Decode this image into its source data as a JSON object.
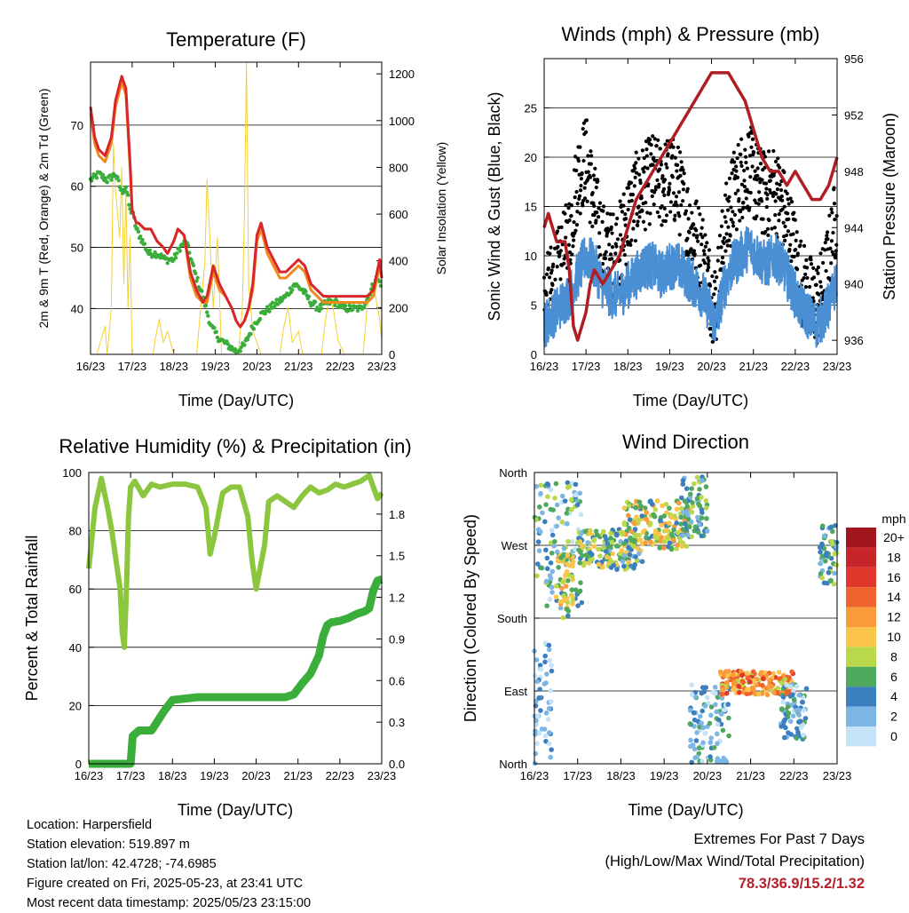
{
  "x_axis": {
    "ticks": [
      "16/23",
      "17/23",
      "18/23",
      "19/23",
      "20/23",
      "21/23",
      "22/23",
      "23/23"
    ],
    "label": "Time (Day/UTC)"
  },
  "chart_data": [
    {
      "type": "line",
      "title": "Temperature (F)",
      "ylabel": "2m & 9m T (Red, Orange) & 2m Td (Green)",
      "y2label": "Solar Insolation (Yellow)",
      "ylim": [
        32.5,
        80.3
      ],
      "yticks": [
        40,
        50,
        60,
        70
      ],
      "y2lim": [
        0,
        1250
      ],
      "y2ticks": [
        0,
        200,
        400,
        600,
        800,
        1000,
        1200
      ],
      "grid": true,
      "series": [
        {
          "color": "#d9262b",
          "axis": "left",
          "x": [
            0,
            0.1,
            0.2,
            0.35,
            0.5,
            0.6,
            0.75,
            0.85,
            0.95,
            1.0,
            1.05,
            1.1,
            1.15,
            1.3,
            1.45,
            1.6,
            1.75,
            1.85,
            2.0,
            2.1,
            2.25,
            2.4,
            2.55,
            2.7,
            2.8,
            2.95,
            3.1,
            3.25,
            3.4,
            3.5,
            3.6,
            3.7,
            3.8,
            3.9,
            4.0,
            4.1,
            4.25,
            4.4,
            4.55,
            4.7,
            4.85,
            5.0,
            5.15,
            5.3,
            5.45,
            5.6,
            5.75,
            5.9,
            6.05,
            6.2,
            6.35,
            6.5,
            6.65,
            6.8,
            6.95,
            7.0
          ],
          "y": [
            73,
            68,
            66,
            65,
            68,
            74,
            78,
            76,
            64,
            56,
            55,
            54,
            54,
            53,
            53,
            51,
            50,
            49,
            51,
            53,
            52,
            46,
            43,
            41,
            42,
            47,
            44,
            42,
            40,
            38,
            37,
            38,
            40,
            44,
            52,
            54,
            50,
            48,
            46,
            46,
            47,
            48,
            47,
            44,
            43,
            42,
            42,
            42,
            42,
            42,
            42,
            42,
            42,
            43,
            48,
            45
          ]
        },
        {
          "color": "#f08a1e",
          "axis": "left",
          "x": [
            0,
            0.1,
            0.2,
            0.35,
            0.5,
            0.6,
            0.75,
            0.85,
            0.95,
            1.0,
            1.05,
            1.1,
            1.15,
            1.3,
            1.45,
            1.6,
            1.75,
            1.85,
            2.0,
            2.1,
            2.25,
            2.4,
            2.55,
            2.7,
            2.8,
            2.95,
            3.1,
            3.25,
            3.4,
            3.5,
            3.6,
            3.7,
            3.8,
            3.9,
            4.0,
            4.1,
            4.25,
            4.4,
            4.55,
            4.7,
            4.85,
            5.0,
            5.15,
            5.3,
            5.45,
            5.6,
            5.75,
            5.9,
            6.05,
            6.2,
            6.35,
            6.5,
            6.65,
            6.8,
            6.95,
            7.0
          ],
          "y": [
            72,
            67,
            65,
            64,
            67,
            73,
            77,
            75,
            63,
            56,
            55,
            54,
            54,
            53,
            53,
            51,
            50,
            49,
            51,
            53,
            52,
            45,
            42,
            41,
            41,
            46,
            43,
            42,
            40,
            38,
            37,
            38,
            40,
            43,
            51,
            53,
            49,
            47,
            45,
            45,
            46,
            47,
            46,
            43,
            42,
            41,
            41,
            41,
            41,
            41,
            41,
            41,
            41,
            42,
            47,
            45
          ]
        },
        {
          "color": "#3aad3a",
          "axis": "left",
          "x": [
            0,
            0.2,
            0.4,
            0.6,
            0.75,
            0.85,
            0.95,
            1.0,
            1.1,
            1.25,
            1.4,
            1.6,
            1.8,
            2.0,
            2.15,
            2.3,
            2.5,
            2.7,
            2.9,
            3.1,
            3.3,
            3.5,
            3.7,
            3.9,
            4.1,
            4.3,
            4.5,
            4.7,
            4.9,
            5.1,
            5.3,
            5.5,
            5.7,
            5.9,
            6.1,
            6.3,
            6.5,
            6.7,
            6.85,
            7.0
          ],
          "y": [
            61,
            62,
            61,
            62,
            59,
            60,
            56,
            56,
            53,
            51,
            49,
            49,
            48,
            48,
            50,
            51,
            46,
            42,
            37,
            35,
            34,
            33,
            34,
            37,
            39,
            40,
            41,
            42,
            44,
            43,
            41,
            40,
            41,
            41,
            40,
            40,
            40,
            42,
            45,
            44
          ]
        },
        {
          "color": "#f5d031",
          "axis": "right",
          "x": [
            0,
            0.15,
            0.25,
            0.35,
            0.4,
            0.5,
            0.55,
            0.6,
            0.7,
            0.75,
            0.8,
            0.85,
            0.9,
            0.95,
            1.0,
            1.1,
            1.5,
            1.55,
            1.65,
            1.75,
            1.85,
            2.0,
            2.55,
            2.65,
            2.75,
            2.8,
            2.95,
            3.05,
            3.15,
            3.35,
            3.55,
            3.65,
            3.7,
            3.75,
            3.8,
            3.9,
            4.1,
            4.55,
            4.65,
            4.75,
            4.85,
            5.0,
            5.1,
            5.55,
            5.65,
            5.75,
            5.85,
            5.95,
            6.1,
            6.55,
            6.65,
            6.75,
            6.85,
            6.95,
            7.0
          ],
          "y": [
            0,
            0,
            60,
            120,
            0,
            200,
            900,
            700,
            500,
            800,
            300,
            700,
            200,
            500,
            0,
            0,
            0,
            60,
            150,
            50,
            100,
            0,
            0,
            200,
            400,
            750,
            200,
            500,
            0,
            0,
            0,
            200,
            600,
            1250,
            300,
            100,
            0,
            0,
            120,
            200,
            50,
            100,
            0,
            0,
            150,
            250,
            180,
            60,
            0,
            0,
            200,
            300,
            250,
            150,
            60
          ]
        }
      ]
    },
    {
      "type": "line",
      "title": "Winds (mph) & Pressure (mb)",
      "ylabel": "Sonic Wind & Gust (Blue, Black)",
      "y2label": "Station Pressure (Maroon)",
      "ylim": [
        0,
        30
      ],
      "yticks": [
        0,
        5,
        10,
        15,
        20,
        25
      ],
      "y2lim": [
        935,
        956
      ],
      "y2ticks": [
        936,
        940,
        944,
        948,
        952,
        956
      ],
      "grid": true,
      "series": [
        {
          "color": "#4a8fd4",
          "axis": "left",
          "kind": "wind",
          "x": [
            0,
            0.2,
            0.4,
            0.6,
            0.8,
            1.0,
            1.2,
            1.4,
            1.6,
            1.8,
            2.0,
            2.2,
            2.4,
            2.6,
            2.8,
            3.0,
            3.2,
            3.4,
            3.6,
            3.8,
            4.0,
            4.1,
            4.3,
            4.5,
            4.7,
            4.9,
            5.1,
            5.3,
            5.5,
            5.7,
            5.9,
            6.1,
            6.3,
            6.5,
            6.7,
            6.9,
            7.0
          ],
          "y": [
            3,
            4,
            5,
            6,
            8,
            10,
            9,
            7,
            6,
            6,
            7,
            8,
            9,
            9,
            8,
            9,
            9,
            8,
            7,
            6,
            4,
            3,
            7,
            9,
            10,
            11,
            10,
            9,
            10,
            9,
            7,
            5,
            4,
            3,
            4,
            6,
            8
          ]
        },
        {
          "color": "#000000",
          "axis": "left",
          "kind": "gust",
          "x": [
            0,
            0.2,
            0.4,
            0.6,
            0.8,
            1.0,
            1.2,
            1.4,
            1.6,
            1.8,
            2.0,
            2.2,
            2.4,
            2.6,
            2.8,
            3.0,
            3.2,
            3.4,
            3.6,
            3.8,
            4.0,
            4.1,
            4.3,
            4.5,
            4.7,
            4.9,
            5.1,
            5.3,
            5.5,
            5.7,
            5.9,
            6.1,
            6.3,
            6.5,
            6.7,
            6.9,
            7.0
          ],
          "y": [
            5,
            7,
            9,
            12,
            18,
            20,
            15,
            11,
            10,
            11,
            14,
            16,
            17,
            18,
            17,
            18,
            17,
            14,
            12,
            10,
            6,
            5,
            12,
            16,
            18,
            19,
            17,
            16,
            17,
            15,
            12,
            8,
            6,
            5,
            7,
            12,
            15
          ]
        },
        {
          "color": "#b01e23",
          "axis": "right",
          "kind": "pressure",
          "x": [
            0,
            0.1,
            0.2,
            0.3,
            0.5,
            0.6,
            0.7,
            0.8,
            0.9,
            1.0,
            1.1,
            1.2,
            1.4,
            1.6,
            1.8,
            2.0,
            2.2,
            2.4,
            2.6,
            2.8,
            3.0,
            3.2,
            3.4,
            3.6,
            3.8,
            4.0,
            4.2,
            4.4,
            4.6,
            4.8,
            5.0,
            5.2,
            5.4,
            5.6,
            5.8,
            6.0,
            6.2,
            6.4,
            6.6,
            6.8,
            7.0
          ],
          "y": [
            944,
            945,
            944,
            943,
            943,
            941,
            937,
            936,
            937,
            938,
            940,
            941,
            940,
            941,
            942,
            944,
            946,
            947,
            948,
            949,
            950,
            951,
            952,
            953,
            954,
            955,
            955,
            955,
            954,
            953,
            951,
            949,
            948,
            948,
            947,
            948,
            947,
            946,
            946,
            947,
            949
          ]
        }
      ]
    },
    {
      "type": "line",
      "title": "Relative Humidity (%) & Precipitation (in)",
      "ylabel": "Percent & Total Rainfall",
      "ylim": [
        0,
        100
      ],
      "yticks": [
        0,
        20,
        40,
        60,
        80,
        100
      ],
      "y2lim": [
        0,
        2.1
      ],
      "y2ticks": [
        "0.0",
        "0.3",
        "0.6",
        "0.9",
        "1.2",
        "1.5",
        "1.8"
      ],
      "grid": true,
      "series": [
        {
          "color": "#8cc63f",
          "axis": "left",
          "x": [
            0,
            0.15,
            0.3,
            0.45,
            0.55,
            0.65,
            0.75,
            0.8,
            0.85,
            0.9,
            0.95,
            1.0,
            1.1,
            1.3,
            1.5,
            1.7,
            2.0,
            2.3,
            2.6,
            2.8,
            2.9,
            3.0,
            3.2,
            3.4,
            3.6,
            3.8,
            3.9,
            4.0,
            4.2,
            4.3,
            4.5,
            4.7,
            4.9,
            5.1,
            5.3,
            5.5,
            5.7,
            5.9,
            6.1,
            6.3,
            6.5,
            6.7,
            6.9,
            7.0
          ],
          "y": [
            67,
            88,
            98,
            88,
            80,
            70,
            60,
            45,
            40,
            60,
            85,
            95,
            97,
            92,
            96,
            95,
            96,
            96,
            95,
            88,
            72,
            78,
            93,
            95,
            95,
            85,
            70,
            60,
            75,
            90,
            92,
            90,
            88,
            92,
            95,
            93,
            94,
            96,
            95,
            96,
            97,
            99,
            91,
            93
          ]
        },
        {
          "color": "#3aad3a",
          "axis": "right",
          "x": [
            0,
            0.5,
            1.0,
            1.05,
            1.2,
            1.5,
            1.8,
            2.0,
            2.3,
            2.6,
            2.9,
            3.2,
            3.5,
            3.8,
            4.1,
            4.4,
            4.7,
            4.9,
            5.1,
            5.3,
            5.5,
            5.6,
            5.7,
            5.8,
            6.0,
            6.2,
            6.4,
            6.6,
            6.7,
            6.8,
            6.9,
            7.0
          ],
          "y": [
            0,
            0,
            0,
            0.2,
            0.24,
            0.24,
            0.38,
            0.46,
            0.47,
            0.48,
            0.48,
            0.48,
            0.48,
            0.48,
            0.48,
            0.48,
            0.48,
            0.5,
            0.58,
            0.65,
            0.78,
            0.92,
            1.0,
            1.02,
            1.03,
            1.05,
            1.08,
            1.1,
            1.12,
            1.25,
            1.32,
            1.33
          ]
        }
      ]
    },
    {
      "type": "scatter",
      "title": "Wind Direction",
      "ylabel": "Direction (Colored By Speed)",
      "yticks": [
        "North",
        "East",
        "South",
        "West",
        "North"
      ],
      "ylim": [
        0,
        360
      ],
      "grid": true,
      "colorbar": {
        "title": "mph",
        "labels": [
          "20+",
          "18",
          "16",
          "14",
          "12",
          "10",
          "8",
          "6",
          "4",
          "2",
          "0"
        ],
        "colors": [
          "#a2161e",
          "#c8252a",
          "#e0372d",
          "#f0622e",
          "#f99b3b",
          "#fbc54c",
          "#b9d84a",
          "#4ea95e",
          "#3b7fbe",
          "#7db6e4",
          "#c4e3f7"
        ]
      },
      "clusters": [
        {
          "x": [
            0,
            1.1
          ],
          "y": [
            180,
            350
          ],
          "speed": [
            0,
            8
          ]
        },
        {
          "x": [
            0.5,
            0.9
          ],
          "y": [
            190,
            260
          ],
          "speed": [
            6,
            12
          ]
        },
        {
          "x": [
            1.0,
            2.5
          ],
          "y": [
            240,
            290
          ],
          "speed": [
            2,
            10
          ]
        },
        {
          "x": [
            2.0,
            3.6
          ],
          "y": [
            265,
            325
          ],
          "speed": [
            4,
            12
          ]
        },
        {
          "x": [
            3.4,
            4.0
          ],
          "y": [
            280,
            355
          ],
          "speed": [
            2,
            8
          ]
        },
        {
          "x": [
            3.6,
            4.5
          ],
          "y": [
            0,
            100
          ],
          "speed": [
            0,
            6
          ]
        },
        {
          "x": [
            4.3,
            6.0
          ],
          "y": [
            85,
            115
          ],
          "speed": [
            8,
            16
          ]
        },
        {
          "x": [
            5.7,
            6.3
          ],
          "y": [
            30,
            100
          ],
          "speed": [
            0,
            6
          ]
        },
        {
          "x": [
            6.6,
            7.0
          ],
          "y": [
            220,
            300
          ],
          "speed": [
            2,
            8
          ]
        },
        {
          "x": [
            0,
            0.4
          ],
          "y": [
            0,
            150
          ],
          "speed": [
            0,
            4
          ]
        }
      ]
    }
  ],
  "footer": {
    "location": "Location: Harpersfield",
    "elevation": "Station elevation: 519.897 m",
    "latlon": "Station lat/lon: 42.4728; -74.6985",
    "created": "Figure created on Fri, 2025-05-23, at 23:41 UTC",
    "recent": "Most recent data timestamp: 2025/05/23 23:15:00",
    "extremes_title": "Extremes For Past 7 Days",
    "extremes_sub": "(High/Low/Max Wind/Total Precipitation)",
    "extremes_values": "78.3/36.9/15.2/1.32"
  }
}
